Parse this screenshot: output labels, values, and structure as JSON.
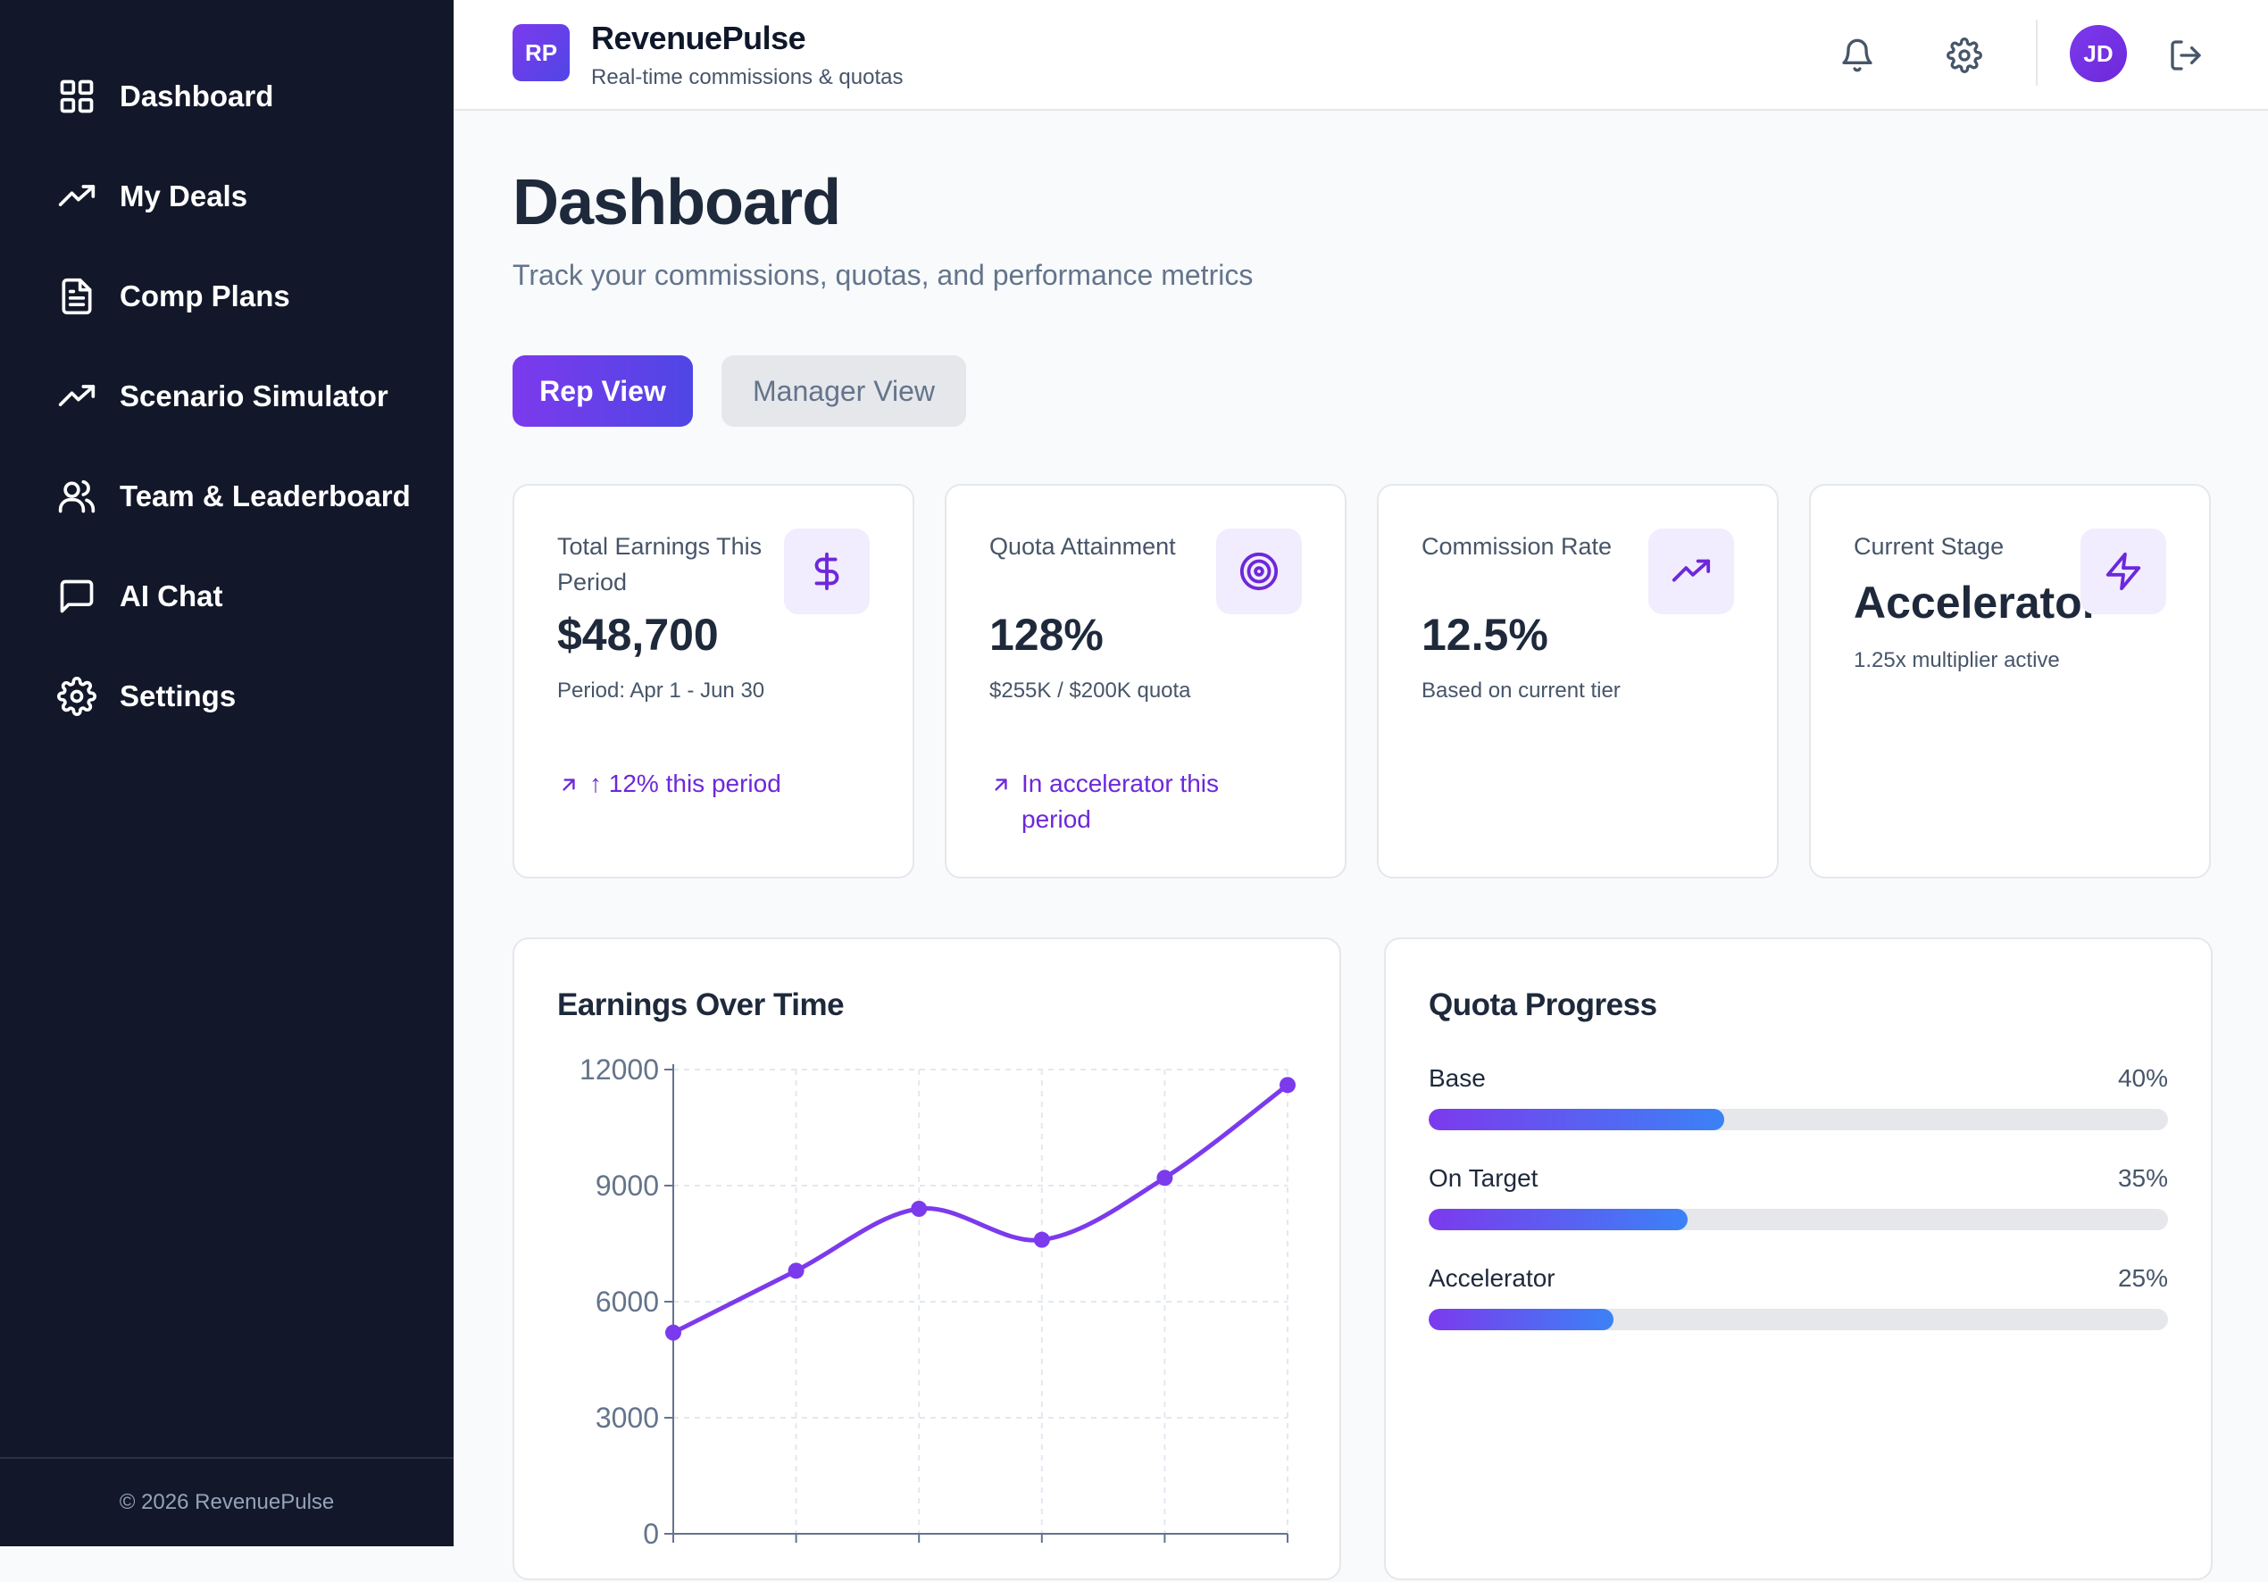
{
  "sidebar": {
    "items": [
      {
        "label": "Dashboard",
        "icon": "grid-icon"
      },
      {
        "label": "My Deals",
        "icon": "trending-up-icon"
      },
      {
        "label": "Comp Plans",
        "icon": "document-icon"
      },
      {
        "label": "Scenario Simulator",
        "icon": "trending-up-icon"
      },
      {
        "label": "Team & Leaderboard",
        "icon": "users-icon"
      },
      {
        "label": "AI Chat",
        "icon": "chat-icon"
      },
      {
        "label": "Settings",
        "icon": "gear-icon"
      }
    ],
    "footer": "© 2026 RevenuePulse"
  },
  "header": {
    "logo": "RP",
    "brand": "RevenuePulse",
    "tagline": "Real-time commissions & quotas",
    "avatar": "JD"
  },
  "main": {
    "title": "Dashboard",
    "subtitle": "Track your commissions, quotas, and performance metrics",
    "view_toggle": {
      "rep": "Rep View",
      "manager": "Manager View"
    }
  },
  "stats": [
    {
      "label": "Total Earnings This Period",
      "value": "$48,700",
      "note": "Period: Apr 1 - Jun 30",
      "trend": "↑ 12% this period",
      "icon": "dollar-icon"
    },
    {
      "label": "Quota Attainment",
      "value": "128%",
      "note": "$255K / $200K quota",
      "trend": "In accelerator this period",
      "icon": "target-icon"
    },
    {
      "label": "Commission Rate",
      "value": "12.5%",
      "note": "Based on current tier",
      "icon": "trending-up-icon"
    },
    {
      "label": "Current Stage",
      "value": "Accelerator",
      "note": "1.25x multiplier active",
      "icon": "lightning-icon"
    }
  ],
  "earnings_panel": {
    "title": "Earnings Over Time"
  },
  "quota_panel": {
    "title": "Quota Progress",
    "rows": [
      {
        "label": "Base",
        "pct_text": "40%",
        "fraction": 0.4
      },
      {
        "label": "On Target",
        "pct_text": "35%",
        "fraction": 0.35
      },
      {
        "label": "Accelerator",
        "pct_text": "25%",
        "fraction": 0.25
      }
    ]
  },
  "colors": {
    "accent": "#6d28d9",
    "line": "#7c3aed",
    "sidebar": "#121829"
  },
  "chart_data": {
    "type": "line",
    "title": "Earnings Over Time",
    "x": [
      0,
      1,
      2,
      3,
      4,
      5
    ],
    "series": [
      {
        "values": [
          5200,
          6800,
          8400,
          7600,
          9200,
          11600
        ]
      }
    ],
    "ylim": [
      0,
      12000
    ],
    "yticks": [
      0,
      3000,
      6000,
      9000,
      12000
    ],
    "grid": true
  }
}
